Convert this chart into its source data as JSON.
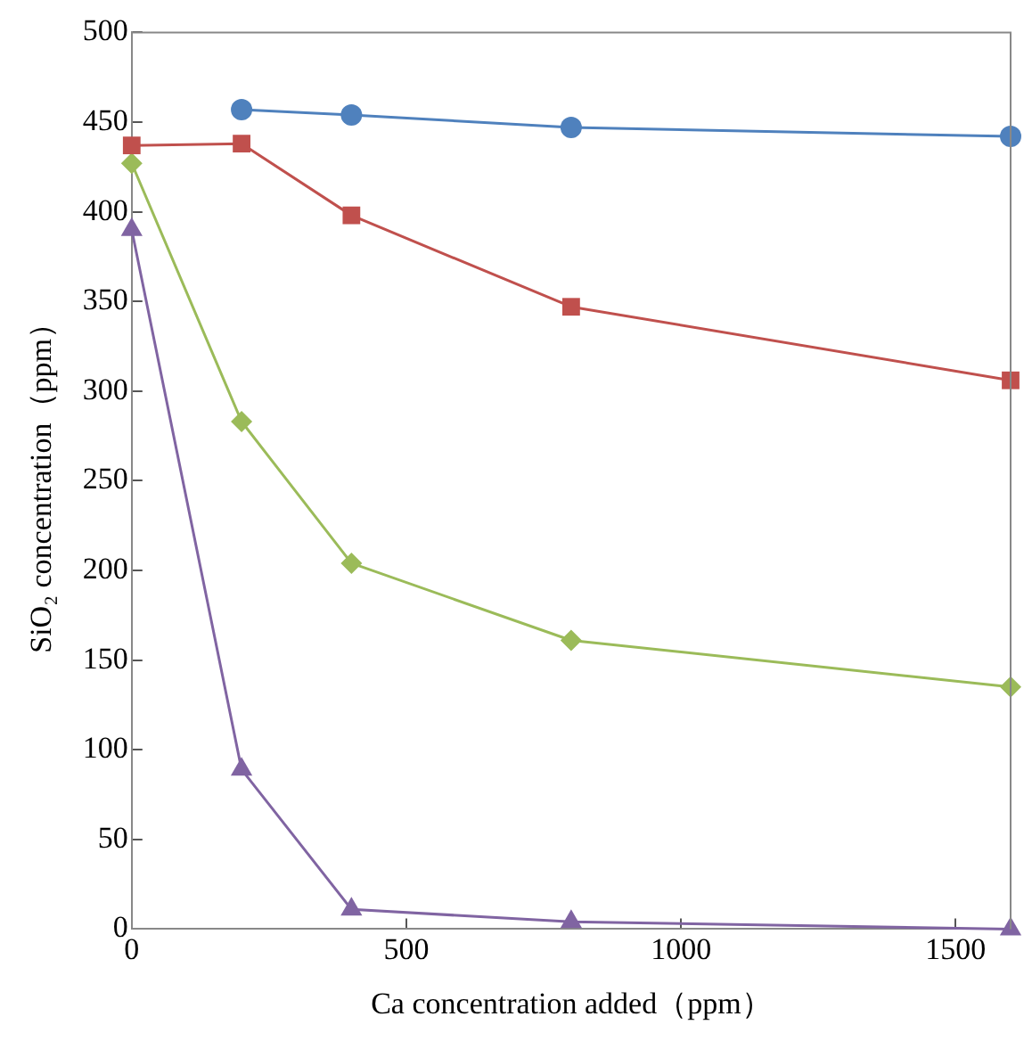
{
  "chart_data": {
    "type": "line",
    "xlabel": "Ca concentration added（ppm）",
    "ylabel": "SiO₂ concentration（ppm）",
    "x": [
      0,
      200,
      400,
      800,
      1600
    ],
    "xlim": [
      0,
      1600
    ],
    "xticks": [
      0,
      500,
      1000,
      1500
    ],
    "ylim": [
      0,
      500
    ],
    "yticks": [
      0,
      50,
      100,
      150,
      200,
      250,
      300,
      350,
      400,
      450,
      500
    ],
    "grid": false,
    "legend": false,
    "series": [
      {
        "color": "#4f81bd",
        "marker": "circle",
        "values": [
          null,
          457,
          454,
          447,
          442
        ]
      },
      {
        "color": "#c0504d",
        "marker": "square",
        "values": [
          437,
          438,
          398,
          347,
          306
        ]
      },
      {
        "color": "#9bbb59",
        "marker": "diamond",
        "values": [
          427,
          283,
          204,
          161,
          135
        ]
      },
      {
        "color": "#8064a2",
        "marker": "triangle",
        "values": [
          390,
          89,
          11,
          4,
          0
        ]
      }
    ]
  }
}
